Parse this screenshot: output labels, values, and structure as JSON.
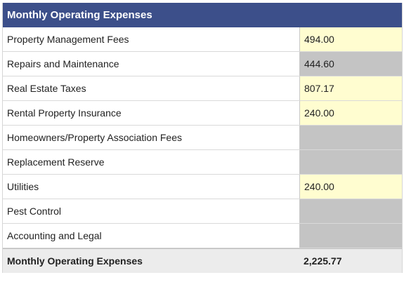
{
  "header": {
    "title": "Monthly Operating Expenses"
  },
  "rows": [
    {
      "label": "Property Management Fees",
      "value": "494.00",
      "editable": true
    },
    {
      "label": "Repairs and Maintenance",
      "value": "444.60",
      "editable": false
    },
    {
      "label": "Real Estate Taxes",
      "value": "807.17",
      "editable": true
    },
    {
      "label": "Rental Property Insurance",
      "value": "240.00",
      "editable": true
    },
    {
      "label": "Homeowners/Property Association Fees",
      "value": "",
      "editable": false
    },
    {
      "label": "Replacement Reserve",
      "value": "",
      "editable": false
    },
    {
      "label": "Utilities",
      "value": "240.00",
      "editable": true
    },
    {
      "label": "Pest Control",
      "value": "",
      "editable": false
    },
    {
      "label": "Accounting and Legal",
      "value": "",
      "editable": false
    }
  ],
  "total": {
    "label": "Monthly Operating Expenses",
    "value": "2,225.77"
  },
  "colors": {
    "header_bg": "#3c4f8a",
    "editable_bg": "#fffdd0",
    "readonly_bg": "#c4c4c4",
    "total_bg": "#ececec"
  }
}
